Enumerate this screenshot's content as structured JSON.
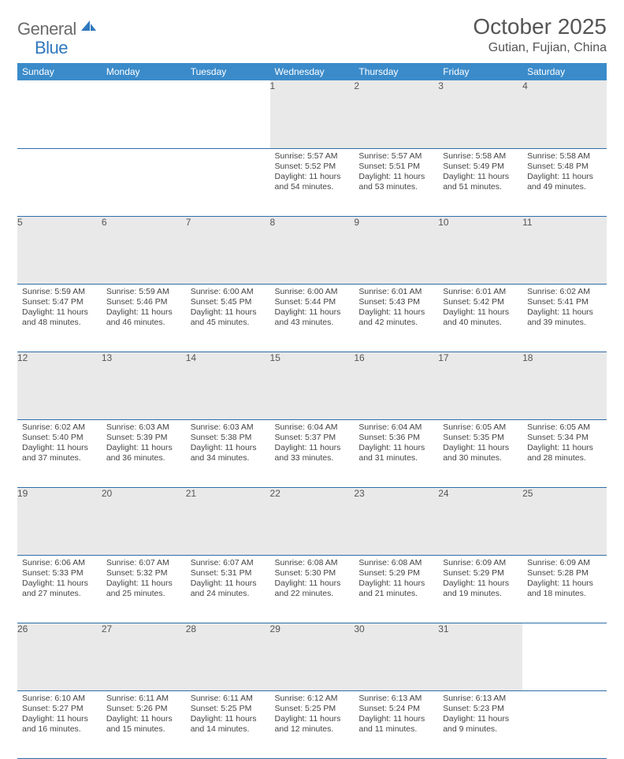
{
  "brand": {
    "general": "General",
    "blue": "Blue"
  },
  "title": "October 2025",
  "location": "Gutian, Fujian, China",
  "colors": {
    "header_bg": "#3b8bca",
    "header_text": "#ffffff",
    "daynum_bg": "#e9e9e9",
    "row_divider": "#2f6da8",
    "brand_gray": "#6b6b6b",
    "brand_blue": "#2f78bd"
  },
  "weekdays": [
    "Sunday",
    "Monday",
    "Tuesday",
    "Wednesday",
    "Thursday",
    "Friday",
    "Saturday"
  ],
  "weeks": [
    {
      "nums": [
        "",
        "",
        "",
        "1",
        "2",
        "3",
        "4"
      ],
      "cells": [
        null,
        null,
        null,
        {
          "sunrise": "5:57 AM",
          "sunset": "5:52 PM",
          "dl1": "Daylight: 11 hours",
          "dl2": "and 54 minutes."
        },
        {
          "sunrise": "5:57 AM",
          "sunset": "5:51 PM",
          "dl1": "Daylight: 11 hours",
          "dl2": "and 53 minutes."
        },
        {
          "sunrise": "5:58 AM",
          "sunset": "5:49 PM",
          "dl1": "Daylight: 11 hours",
          "dl2": "and 51 minutes."
        },
        {
          "sunrise": "5:58 AM",
          "sunset": "5:48 PM",
          "dl1": "Daylight: 11 hours",
          "dl2": "and 49 minutes."
        }
      ]
    },
    {
      "nums": [
        "5",
        "6",
        "7",
        "8",
        "9",
        "10",
        "11"
      ],
      "cells": [
        {
          "sunrise": "5:59 AM",
          "sunset": "5:47 PM",
          "dl1": "Daylight: 11 hours",
          "dl2": "and 48 minutes."
        },
        {
          "sunrise": "5:59 AM",
          "sunset": "5:46 PM",
          "dl1": "Daylight: 11 hours",
          "dl2": "and 46 minutes."
        },
        {
          "sunrise": "6:00 AM",
          "sunset": "5:45 PM",
          "dl1": "Daylight: 11 hours",
          "dl2": "and 45 minutes."
        },
        {
          "sunrise": "6:00 AM",
          "sunset": "5:44 PM",
          "dl1": "Daylight: 11 hours",
          "dl2": "and 43 minutes."
        },
        {
          "sunrise": "6:01 AM",
          "sunset": "5:43 PM",
          "dl1": "Daylight: 11 hours",
          "dl2": "and 42 minutes."
        },
        {
          "sunrise": "6:01 AM",
          "sunset": "5:42 PM",
          "dl1": "Daylight: 11 hours",
          "dl2": "and 40 minutes."
        },
        {
          "sunrise": "6:02 AM",
          "sunset": "5:41 PM",
          "dl1": "Daylight: 11 hours",
          "dl2": "and 39 minutes."
        }
      ]
    },
    {
      "nums": [
        "12",
        "13",
        "14",
        "15",
        "16",
        "17",
        "18"
      ],
      "cells": [
        {
          "sunrise": "6:02 AM",
          "sunset": "5:40 PM",
          "dl1": "Daylight: 11 hours",
          "dl2": "and 37 minutes."
        },
        {
          "sunrise": "6:03 AM",
          "sunset": "5:39 PM",
          "dl1": "Daylight: 11 hours",
          "dl2": "and 36 minutes."
        },
        {
          "sunrise": "6:03 AM",
          "sunset": "5:38 PM",
          "dl1": "Daylight: 11 hours",
          "dl2": "and 34 minutes."
        },
        {
          "sunrise": "6:04 AM",
          "sunset": "5:37 PM",
          "dl1": "Daylight: 11 hours",
          "dl2": "and 33 minutes."
        },
        {
          "sunrise": "6:04 AM",
          "sunset": "5:36 PM",
          "dl1": "Daylight: 11 hours",
          "dl2": "and 31 minutes."
        },
        {
          "sunrise": "6:05 AM",
          "sunset": "5:35 PM",
          "dl1": "Daylight: 11 hours",
          "dl2": "and 30 minutes."
        },
        {
          "sunrise": "6:05 AM",
          "sunset": "5:34 PM",
          "dl1": "Daylight: 11 hours",
          "dl2": "and 28 minutes."
        }
      ]
    },
    {
      "nums": [
        "19",
        "20",
        "21",
        "22",
        "23",
        "24",
        "25"
      ],
      "cells": [
        {
          "sunrise": "6:06 AM",
          "sunset": "5:33 PM",
          "dl1": "Daylight: 11 hours",
          "dl2": "and 27 minutes."
        },
        {
          "sunrise": "6:07 AM",
          "sunset": "5:32 PM",
          "dl1": "Daylight: 11 hours",
          "dl2": "and 25 minutes."
        },
        {
          "sunrise": "6:07 AM",
          "sunset": "5:31 PM",
          "dl1": "Daylight: 11 hours",
          "dl2": "and 24 minutes."
        },
        {
          "sunrise": "6:08 AM",
          "sunset": "5:30 PM",
          "dl1": "Daylight: 11 hours",
          "dl2": "and 22 minutes."
        },
        {
          "sunrise": "6:08 AM",
          "sunset": "5:29 PM",
          "dl1": "Daylight: 11 hours",
          "dl2": "and 21 minutes."
        },
        {
          "sunrise": "6:09 AM",
          "sunset": "5:29 PM",
          "dl1": "Daylight: 11 hours",
          "dl2": "and 19 minutes."
        },
        {
          "sunrise": "6:09 AM",
          "sunset": "5:28 PM",
          "dl1": "Daylight: 11 hours",
          "dl2": "and 18 minutes."
        }
      ]
    },
    {
      "nums": [
        "26",
        "27",
        "28",
        "29",
        "30",
        "31",
        ""
      ],
      "cells": [
        {
          "sunrise": "6:10 AM",
          "sunset": "5:27 PM",
          "dl1": "Daylight: 11 hours",
          "dl2": "and 16 minutes."
        },
        {
          "sunrise": "6:11 AM",
          "sunset": "5:26 PM",
          "dl1": "Daylight: 11 hours",
          "dl2": "and 15 minutes."
        },
        {
          "sunrise": "6:11 AM",
          "sunset": "5:25 PM",
          "dl1": "Daylight: 11 hours",
          "dl2": "and 14 minutes."
        },
        {
          "sunrise": "6:12 AM",
          "sunset": "5:25 PM",
          "dl1": "Daylight: 11 hours",
          "dl2": "and 12 minutes."
        },
        {
          "sunrise": "6:13 AM",
          "sunset": "5:24 PM",
          "dl1": "Daylight: 11 hours",
          "dl2": "and 11 minutes."
        },
        {
          "sunrise": "6:13 AM",
          "sunset": "5:23 PM",
          "dl1": "Daylight: 11 hours",
          "dl2": "and 9 minutes."
        },
        null
      ]
    }
  ],
  "labels": {
    "sunrise": "Sunrise: ",
    "sunset": "Sunset: "
  }
}
